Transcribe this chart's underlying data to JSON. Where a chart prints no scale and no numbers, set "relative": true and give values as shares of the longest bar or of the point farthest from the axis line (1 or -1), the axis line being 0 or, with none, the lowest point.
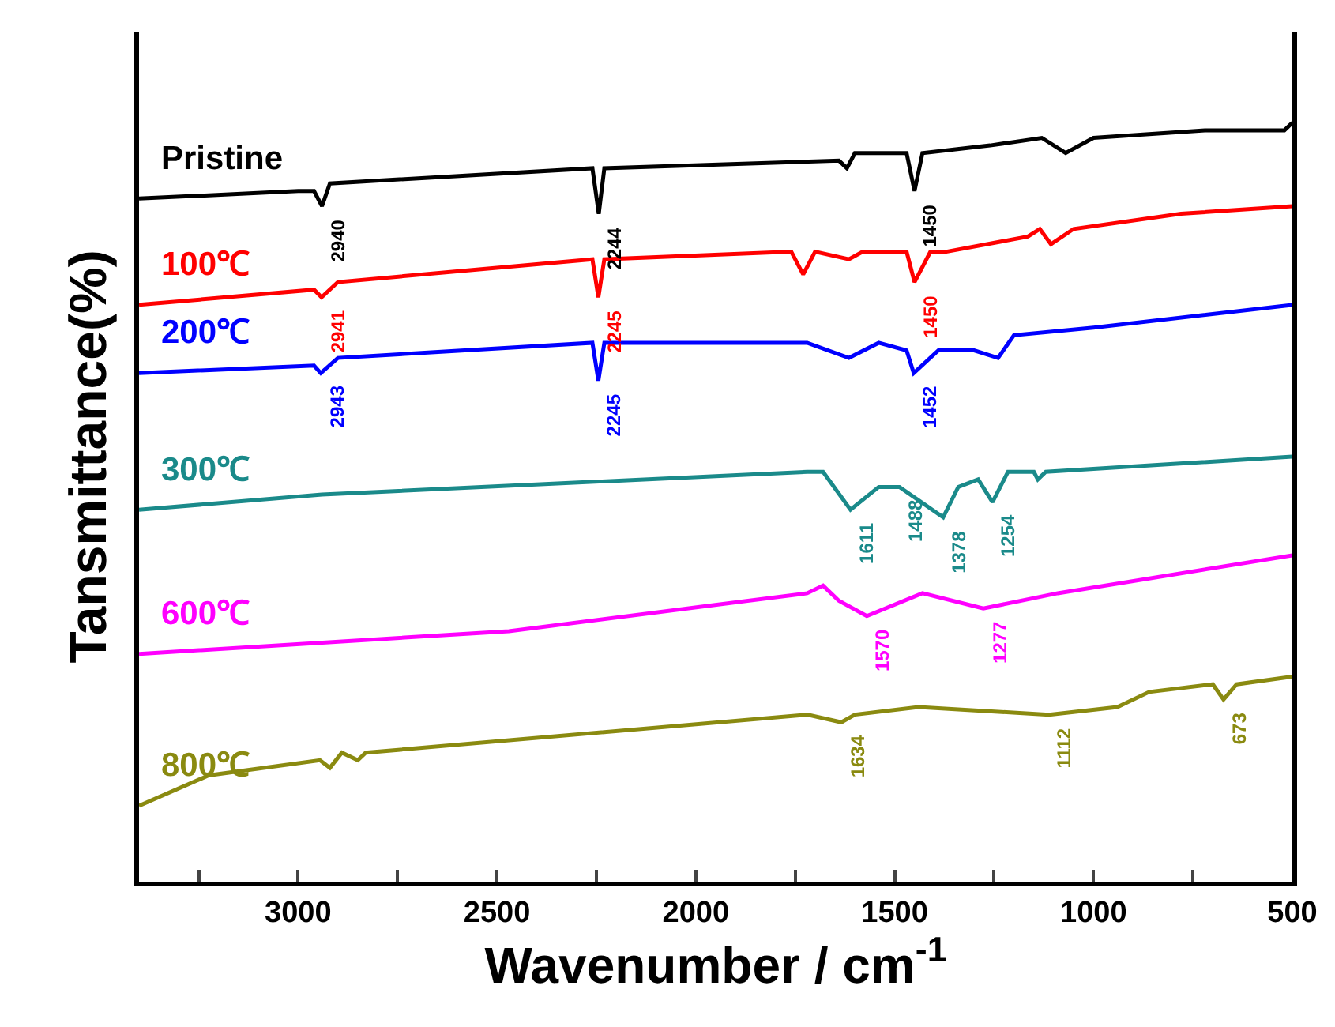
{
  "chart_data": {
    "type": "line",
    "relative": true,
    "xlabel": "Wavenumber / cm$^{-1}$",
    "ylabel": "Tansmittance(%)",
    "xlim": [
      3400,
      500
    ],
    "xticks": [
      {
        "value": 3250,
        "label": null
      },
      3000,
      {
        "value": 2750,
        "label": null
      },
      2500,
      {
        "value": 2250,
        "label": null
      },
      2000,
      {
        "value": 1750,
        "label": null
      },
      1500,
      {
        "value": 1250,
        "label": null
      },
      1000,
      {
        "value": 750,
        "label": null
      },
      500
    ],
    "legend": false,
    "grid": false,
    "line_style": "solid",
    "marker": "none",
    "series": [
      {
        "name": "Pristine",
        "color": "#000000",
        "x": [
          3400,
          3000,
          2960,
          2940,
          2920,
          2260,
          2244,
          2230,
          1640,
          1620,
          1600,
          1470,
          1450,
          1430,
          1260,
          1130,
          1070,
          1000,
          720,
          520,
          500
        ],
        "values": [
          0.9,
          0.91,
          0.91,
          0.89,
          0.92,
          0.94,
          0.88,
          0.94,
          0.95,
          0.94,
          0.96,
          0.96,
          0.91,
          0.96,
          0.97,
          0.98,
          0.96,
          0.98,
          0.99,
          0.99,
          1.0
        ]
      },
      {
        "name": "100℃",
        "color": "#ff0000",
        "x": [
          3400,
          2960,
          2941,
          2900,
          2260,
          2245,
          2230,
          1760,
          1730,
          1700,
          1615,
          1580,
          1470,
          1450,
          1410,
          1370,
          1165,
          1135,
          1107,
          1050,
          780,
          500
        ],
        "values": [
          0.76,
          0.78,
          0.77,
          0.79,
          0.82,
          0.77,
          0.82,
          0.83,
          0.8,
          0.83,
          0.82,
          0.83,
          0.83,
          0.79,
          0.83,
          0.83,
          0.85,
          0.86,
          0.84,
          0.86,
          0.88,
          0.89
        ]
      },
      {
        "name": "200℃",
        "color": "#0000ff",
        "x": [
          3400,
          2960,
          2943,
          2900,
          2260,
          2245,
          2230,
          1720,
          1615,
          1540,
          1470,
          1452,
          1390,
          1300,
          1240,
          1200,
          1000,
          500
        ],
        "values": [
          0.67,
          0.68,
          0.67,
          0.69,
          0.71,
          0.66,
          0.71,
          0.71,
          0.69,
          0.71,
          0.7,
          0.67,
          0.7,
          0.7,
          0.69,
          0.72,
          0.73,
          0.76
        ]
      },
      {
        "name": "300℃",
        "color": "#1a8a8a",
        "x": [
          3400,
          2940,
          1720,
          1680,
          1611,
          1540,
          1488,
          1378,
          1340,
          1290,
          1254,
          1215,
          1150,
          1140,
          1120,
          500
        ],
        "values": [
          0.49,
          0.51,
          0.54,
          0.54,
          0.49,
          0.52,
          0.52,
          0.48,
          0.52,
          0.53,
          0.5,
          0.54,
          0.54,
          0.53,
          0.54,
          0.56
        ]
      },
      {
        "name": "600℃",
        "color": "#ff00ff",
        "x": [
          3400,
          2470,
          1720,
          1680,
          1640,
          1570,
          1430,
          1277,
          1090,
          500
        ],
        "values": [
          0.3,
          0.33,
          0.38,
          0.39,
          0.37,
          0.35,
          0.38,
          0.36,
          0.38,
          0.43
        ]
      },
      {
        "name": "800℃",
        "color": "#8a8a10",
        "x": [
          3400,
          3225,
          2945,
          2920,
          2890,
          2850,
          2830,
          1720,
          1634,
          1600,
          1440,
          1112,
          940,
          860,
          700,
          673,
          640,
          500
        ],
        "values": [
          0.1,
          0.14,
          0.16,
          0.15,
          0.17,
          0.16,
          0.17,
          0.22,
          0.21,
          0.22,
          0.23,
          0.22,
          0.23,
          0.25,
          0.26,
          0.24,
          0.26,
          0.27
        ]
      }
    ],
    "annotations": [
      {
        "text": "2940",
        "x": 2940,
        "y": 0.89
      },
      {
        "text": "2244",
        "x": 2244,
        "y": 0.88
      },
      {
        "text": "1450",
        "x": 1450,
        "y": 0.91
      },
      {
        "text": "2941",
        "x": 2941,
        "y": 0.77
      },
      {
        "text": "2245",
        "x": 2245,
        "y": 0.77
      },
      {
        "text": "1450",
        "x": 1450,
        "y": 0.79
      },
      {
        "text": "2943",
        "x": 2943,
        "y": 0.67
      },
      {
        "text": "2245",
        "x": 2245,
        "y": 0.66
      },
      {
        "text": "1452",
        "x": 1452,
        "y": 0.67
      },
      {
        "text": "1611",
        "x": 1611,
        "y": 0.49
      },
      {
        "text": "1488",
        "x": 1488,
        "y": 0.52
      },
      {
        "text": "1378",
        "x": 1378,
        "y": 0.48
      },
      {
        "text": "1254",
        "x": 1254,
        "y": 0.5
      },
      {
        "text": "1570",
        "x": 1570,
        "y": 0.35
      },
      {
        "text": "1277",
        "x": 1277,
        "y": 0.36
      },
      {
        "text": "1634",
        "x": 1634,
        "y": 0.21
      },
      {
        "text": "1112",
        "x": 1112,
        "y": 0.22
      },
      {
        "text": "673",
        "x": 673,
        "y": 0.24
      }
    ]
  }
}
